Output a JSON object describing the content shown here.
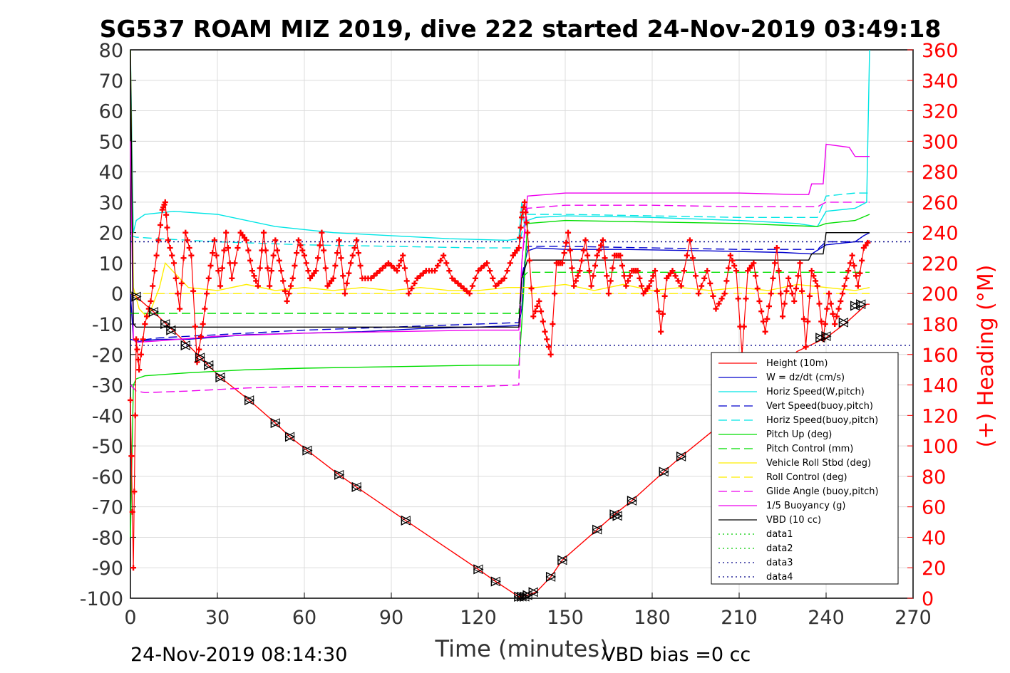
{
  "chart_data": {
    "type": "line",
    "title": "SG537 ROAM MIZ 2019, dive 222 started 24-Nov-2019 03:49:18",
    "xlabel": "Time (minutes)",
    "ylabel_right": "(+) Heading (°M)",
    "footer_left": "24-Nov-2019 08:14:30",
    "footer_right": "VBD bias =0 cc",
    "xlim": [
      0,
      270
    ],
    "ylim": [
      -100,
      80
    ],
    "ylim_right": [
      0,
      360
    ],
    "xticks": [
      "0",
      "30",
      "60",
      "90",
      "120",
      "150",
      "180",
      "210",
      "240",
      "270"
    ],
    "yticks": [
      "80",
      "70",
      "60",
      "50",
      "40",
      "30",
      "20",
      "10",
      "0",
      "-10",
      "-20",
      "-30",
      "-40",
      "-50",
      "-60",
      "-70",
      "-80",
      "-90",
      "-100"
    ],
    "yticks_right": [
      "360",
      "340",
      "320",
      "300",
      "280",
      "260",
      "240",
      "220",
      "200",
      "180",
      "160",
      "140",
      "120",
      "100",
      "80",
      "60",
      "40",
      "20",
      "0"
    ],
    "grid": true,
    "legend_position": "lower-right",
    "series": [
      {
        "name": "Height (10m)",
        "color": "#ff0000",
        "style": "solid",
        "x": [
          0,
          2,
          8,
          20,
          31,
          41,
          50,
          55,
          61,
          72,
          78,
          95,
          120,
          126,
          134,
          137,
          140,
          145,
          149,
          161,
          167,
          173,
          184,
          190,
          201,
          230,
          240,
          247,
          254,
          255
        ],
        "y": [
          0,
          -1,
          -6,
          -17,
          -27.5,
          -35,
          -42.5,
          -47,
          -51.5,
          -59.5,
          -63.5,
          -74.5,
          -90.5,
          -94.5,
          -99.5,
          -99,
          -98,
          -93,
          -87.5,
          -77.5,
          -72.5,
          -68,
          -58.5,
          -53.5,
          -45,
          -19,
          -14.5,
          -9.5,
          -3.5,
          -3.5
        ]
      },
      {
        "name": "W = dz/dt (cm/s)",
        "color": "#0000cc",
        "style": "solid",
        "x": [
          0,
          1,
          2,
          4,
          10,
          20,
          40,
          60,
          80,
          100,
          120,
          134,
          135,
          136,
          137,
          140,
          150,
          170,
          200,
          225,
          235,
          240,
          250,
          253,
          255
        ],
        "y": [
          0,
          -15,
          -16,
          -15.5,
          -15,
          -15,
          -13.5,
          -13,
          -12.5,
          -11.5,
          -11,
          -10.5,
          -5,
          10,
          14,
          15,
          14.5,
          14.5,
          14,
          13.5,
          13,
          16,
          17,
          19,
          20
        ]
      },
      {
        "name": "Horiz Speed(W,pitch)",
        "color": "#00e5e5",
        "style": "solid",
        "x": [
          0,
          1,
          2,
          5,
          15,
          30,
          50,
          70,
          90,
          110,
          130,
          134,
          135,
          136,
          137,
          140,
          150,
          180,
          210,
          230,
          237,
          240,
          250,
          254,
          255
        ],
        "y": [
          80,
          20,
          24,
          26,
          27,
          26,
          22,
          20,
          19,
          18,
          17.5,
          18,
          30,
          22,
          24,
          25,
          25.5,
          25,
          24,
          23,
          22,
          27,
          28,
          30,
          80
        ]
      },
      {
        "name": "Vert Speed(buoy,pitch)",
        "color": "#0000cc",
        "style": "dash",
        "x": [
          0,
          2,
          10,
          30,
          60,
          90,
          120,
          134,
          135,
          137,
          150,
          180,
          210,
          237,
          240,
          255
        ],
        "y": [
          -15,
          -15.5,
          -14.5,
          -13.5,
          -12,
          -11,
          -10,
          -9.5,
          5,
          15.5,
          15.5,
          15,
          14.5,
          14.5,
          17,
          17
        ]
      },
      {
        "name": "Horiz Speed(buoy,pitch)",
        "color": "#00e5e5",
        "style": "dash",
        "x": [
          0,
          2,
          10,
          30,
          60,
          90,
          120,
          134,
          135,
          137,
          150,
          180,
          210,
          237,
          240,
          250,
          255
        ],
        "y": [
          19,
          18.5,
          18,
          17,
          16,
          15.5,
          15,
          15,
          20,
          26,
          26,
          25.5,
          25,
          25,
          32,
          33,
          33
        ]
      },
      {
        "name": "Pitch Up (deg)",
        "color": "#00dd00",
        "style": "solid",
        "x": [
          0,
          1,
          2,
          5,
          20,
          40,
          60,
          90,
          120,
          134,
          135,
          137,
          150,
          180,
          210,
          237,
          240,
          250,
          255
        ],
        "y": [
          -80,
          -30,
          -28,
          -27,
          -26,
          -25,
          -24.5,
          -24,
          -23.5,
          -23.5,
          -10,
          23,
          24,
          23.5,
          23,
          22,
          23,
          24,
          26
        ]
      },
      {
        "name": "Pitch Control (mm)",
        "color": "#00dd00",
        "style": "dash",
        "x": [
          0,
          2,
          134,
          135,
          137,
          255
        ],
        "y": [
          -6.5,
          -6.5,
          -6.5,
          5,
          7,
          7
        ]
      },
      {
        "name": "Vehicle Roll Stbd (deg)",
        "color": "#ffee00",
        "style": "solid",
        "x": [
          0,
          1,
          3,
          6,
          10,
          12,
          20,
          30,
          40,
          50,
          60,
          70,
          80,
          90,
          100,
          110,
          120,
          130,
          134,
          140,
          150,
          160,
          170,
          180,
          190,
          200,
          210,
          220,
          230,
          240,
          250,
          255
        ],
        "y": [
          80,
          2,
          -5,
          -8,
          2,
          10,
          2,
          1,
          3,
          1,
          2,
          1,
          2,
          1,
          2,
          1,
          1,
          2,
          2,
          2,
          3,
          1,
          3,
          1,
          2,
          1,
          2,
          1,
          3,
          2,
          1,
          2
        ]
      },
      {
        "name": "Roll Control (deg)",
        "color": "#ffee00",
        "style": "dash",
        "x": [
          0,
          255
        ],
        "y": [
          0,
          0
        ]
      },
      {
        "name": "Glide Angle (buoy,pitch)",
        "color": "#ee00ee",
        "style": "dash",
        "x": [
          0,
          2,
          5,
          20,
          40,
          60,
          90,
          120,
          134,
          135,
          137,
          150,
          180,
          210,
          237,
          240,
          255
        ],
        "y": [
          -30,
          -32,
          -32.5,
          -32,
          -31,
          -30.5,
          -30.5,
          -30.5,
          -30,
          10,
          28,
          29,
          29,
          28.5,
          28.5,
          30,
          30
        ]
      },
      {
        "name": "1/5 Buoyancy (g)",
        "color": "#ee00ee",
        "style": "solid",
        "x": [
          0,
          1,
          2,
          10,
          30,
          60,
          90,
          120,
          134,
          135,
          137,
          150,
          180,
          210,
          230,
          234,
          235,
          239,
          240,
          248,
          250,
          255
        ],
        "y": [
          50,
          -15,
          -16,
          -15.5,
          -14,
          -13,
          -12.5,
          -12,
          -12,
          10,
          32,
          33,
          33,
          33,
          32.5,
          32.5,
          36,
          36,
          49,
          48,
          45,
          45
        ]
      },
      {
        "name": "VBD (10 cc)",
        "color": "#000000",
        "style": "solid",
        "x": [
          0,
          1,
          2,
          134,
          135,
          137,
          234,
          235,
          239,
          240,
          255
        ],
        "y": [
          80,
          -10,
          -11,
          -11,
          5,
          11,
          11,
          13,
          13,
          20,
          20
        ]
      },
      {
        "name": "data1",
        "color": "#00cc00",
        "style": "dot",
        "x": [],
        "y": []
      },
      {
        "name": "data2",
        "color": "#00cc00",
        "style": "dot",
        "x": [],
        "y": []
      },
      {
        "name": "data3",
        "color": "#000088",
        "style": "dot",
        "x": [
          0,
          270
        ],
        "y": [
          -17,
          -17
        ]
      },
      {
        "name": "data4",
        "color": "#000088",
        "style": "dot",
        "x": [
          0,
          270
        ],
        "y": [
          17,
          17
        ]
      }
    ],
    "depth_markers": {
      "x": [
        2,
        8,
        12,
        14,
        19,
        24,
        27,
        31,
        41,
        50,
        55,
        61,
        72,
        78,
        95,
        120,
        126,
        134,
        135,
        136,
        137,
        139,
        145,
        149,
        161,
        167,
        168,
        173,
        184,
        190,
        238,
        240,
        246,
        250,
        252
      ],
      "y": [
        -1,
        -6,
        -10,
        -12,
        -17,
        -21,
        -23.5,
        -27.5,
        -35,
        -42.5,
        -47,
        -51.5,
        -59.5,
        -63.5,
        -74.5,
        -90.5,
        -94.5,
        -99.5,
        -99.5,
        -99.5,
        -99,
        -98,
        -93,
        -87.5,
        -77.5,
        -72.5,
        -73,
        -68,
        -58.5,
        -53.5,
        -14.5,
        -14,
        -9.5,
        -4,
        -3.5
      ]
    },
    "heading_series": {
      "name": "heading",
      "color": "#ff0000",
      "axis": "right",
      "x": [
        0,
        1,
        2,
        3,
        5,
        7,
        9,
        11,
        12,
        13,
        15,
        17,
        19,
        21,
        23,
        25,
        27,
        29,
        31,
        33,
        35,
        38,
        40,
        42,
        44,
        46,
        48,
        50,
        52,
        54,
        56,
        58,
        60,
        62,
        64,
        66,
        68,
        70,
        72,
        74,
        76,
        78,
        80,
        83,
        86,
        89,
        92,
        94,
        96,
        99,
        102,
        105,
        108,
        111,
        114,
        117,
        120,
        123,
        126,
        129,
        132,
        134,
        135,
        136,
        137,
        139,
        141,
        143,
        145,
        147,
        149,
        151,
        153,
        155,
        157,
        159,
        161,
        163,
        165,
        167,
        169,
        171,
        173,
        175,
        177,
        179,
        181,
        183,
        185,
        187,
        190,
        193,
        196,
        199,
        202,
        205,
        207,
        209,
        211,
        213,
        215,
        217,
        219,
        221,
        223,
        225,
        227,
        229,
        231,
        233,
        235,
        237,
        239,
        241,
        243,
        245,
        247,
        249,
        251,
        253,
        255
      ],
      "y": [
        130,
        20,
        170,
        150,
        180,
        195,
        225,
        255,
        260,
        235,
        220,
        190,
        240,
        225,
        155,
        180,
        210,
        235,
        205,
        240,
        210,
        240,
        235,
        215,
        205,
        240,
        205,
        235,
        215,
        195,
        210,
        235,
        225,
        210,
        215,
        240,
        205,
        210,
        235,
        200,
        220,
        235,
        210,
        210,
        215,
        220,
        215,
        225,
        200,
        210,
        215,
        215,
        225,
        210,
        205,
        200,
        215,
        220,
        205,
        210,
        225,
        230,
        250,
        260,
        240,
        185,
        195,
        175,
        160,
        220,
        220,
        240,
        205,
        215,
        235,
        205,
        225,
        235,
        200,
        225,
        225,
        205,
        215,
        215,
        200,
        205,
        215,
        175,
        210,
        215,
        205,
        235,
        200,
        215,
        190,
        200,
        225,
        215,
        160,
        215,
        220,
        195,
        175,
        200,
        230,
        185,
        210,
        195,
        220,
        165,
        215,
        205,
        170,
        200,
        180,
        195,
        210,
        225,
        205,
        230,
        235
      ]
    }
  }
}
